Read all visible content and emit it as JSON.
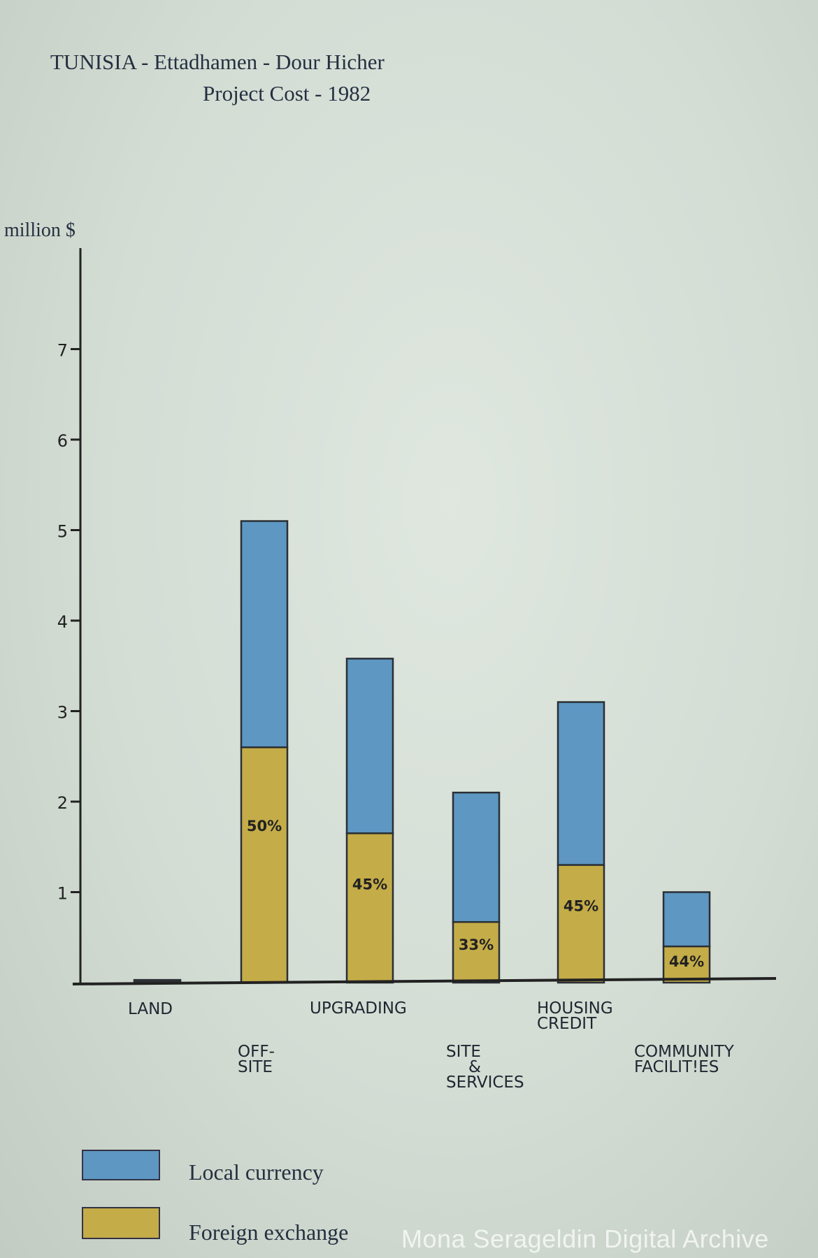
{
  "chart_data": {
    "type": "bar",
    "stacked": true,
    "title_line1": "TUNISIA - Ettadhamen - Dour Hicher",
    "title_line2": "Project Cost - 1982",
    "ylabel": "million $",
    "ylim": [
      0,
      7.8
    ],
    "yticks": [
      1,
      2,
      3,
      4,
      5,
      6,
      7
    ],
    "categories": [
      [
        "LAND"
      ],
      [
        "OFF-",
        "SITE"
      ],
      [
        "UPGRADING"
      ],
      [
        "SITE",
        "&",
        "SERVICES"
      ],
      [
        "HOUSING",
        "CREDIT"
      ],
      [
        "COMMUNITY",
        "FACILIT!ES"
      ]
    ],
    "series": [
      {
        "name": "Foreign exchange",
        "color": "#c4ac48",
        "values": [
          0.03,
          2.6,
          1.65,
          0.67,
          1.3,
          0.4
        ]
      },
      {
        "name": "Local currency",
        "color": "#5d97c2",
        "values": [
          0.0,
          2.5,
          1.93,
          1.43,
          1.8,
          0.6
        ]
      }
    ],
    "percent_labels": [
      "",
      "50%",
      "45%",
      "33%",
      "45%",
      "44%"
    ],
    "legend_placement": "bottom-left",
    "grid": false
  },
  "watermark": "Mona Serageldin Digital Archive"
}
